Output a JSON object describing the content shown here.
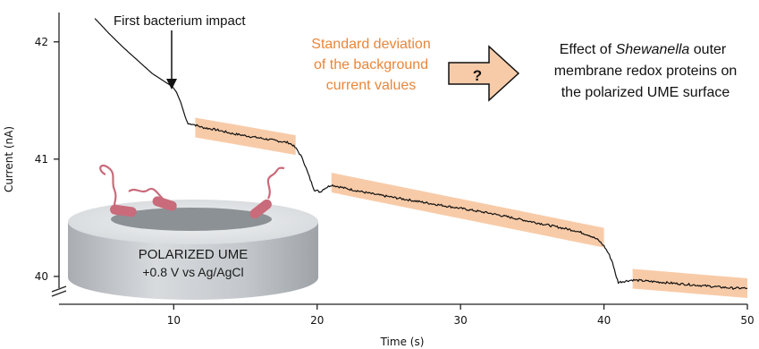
{
  "chart_data": {
    "type": "line",
    "xlabel": "Time (s)",
    "ylabel": "Current (nA)",
    "xlim": [
      2,
      50
    ],
    "ylim": [
      39.9,
      42.25
    ],
    "x_ticks": [
      10,
      20,
      30,
      40,
      50
    ],
    "y_ticks": [
      40,
      41,
      42
    ],
    "y_axis_break": true,
    "grid": false,
    "series": [
      {
        "color": "#111111",
        "x": [
          4.5,
          5.5,
          6.5,
          7.5,
          8.5,
          9.0,
          9.5,
          9.9,
          10.2,
          10.5,
          10.8,
          11.0,
          11.3,
          12.0,
          13.0,
          14.0,
          15.0,
          16.0,
          17.0,
          18.0,
          18.3,
          18.6,
          19.0,
          19.3,
          19.6,
          19.8,
          20.0,
          20.2,
          20.5,
          21.0,
          22.0,
          24.0,
          26.0,
          28.0,
          30.0,
          32.0,
          34.0,
          36.0,
          38.0,
          39.0,
          39.6,
          40.0,
          40.3,
          40.6,
          40.8,
          41.0,
          41.5,
          42.0,
          43.0,
          44.0,
          45.0,
          46.0,
          47.0,
          48.0,
          49.0,
          50.0
        ],
        "y": [
          42.2,
          42.07,
          41.95,
          41.84,
          41.73,
          41.69,
          41.65,
          41.62,
          41.57,
          41.48,
          41.36,
          41.3,
          41.3,
          41.27,
          41.25,
          41.22,
          41.2,
          41.18,
          41.16,
          41.14,
          41.12,
          41.08,
          41.0,
          40.9,
          40.8,
          40.74,
          40.73,
          40.72,
          40.75,
          40.78,
          40.75,
          40.7,
          40.66,
          40.62,
          40.58,
          40.54,
          40.49,
          40.44,
          40.39,
          40.35,
          40.31,
          40.26,
          40.2,
          40.12,
          40.02,
          39.95,
          39.96,
          39.97,
          39.96,
          39.95,
          39.94,
          39.93,
          39.92,
          39.91,
          39.9,
          39.9
        ]
      }
    ],
    "highlight_bands": [
      {
        "x": [
          11.5,
          18.5
        ],
        "y": [
          41.27,
          41.12
        ]
      },
      {
        "x": [
          21.0,
          40.0
        ],
        "y": [
          40.8,
          40.33
        ]
      },
      {
        "x": [
          42.0,
          50.0
        ],
        "y": [
          39.98,
          39.9
        ]
      }
    ],
    "band_color": "#f8cba8"
  },
  "annotations": {
    "first_impact": "First bacterium impact",
    "std_line1": "Standard deviation",
    "std_line2": "of the background",
    "std_line3": "current values",
    "arrow_symbol": "?",
    "effect_line1_a": "Effect of ",
    "effect_line1_b": "Shewanella",
    "effect_line1_c": " outer",
    "effect_line2": "membrane redox proteins on",
    "effect_line3": "the polarized UME surface"
  },
  "inset": {
    "line1": "POLARIZED UME",
    "line2": "+0.8 V vs Ag/AgCl"
  },
  "colors": {
    "orange_text": "#e8863a",
    "arrow_fill": "#f8cba8",
    "bacterium": "#c96b7b",
    "disk": "#c8ccd0"
  }
}
